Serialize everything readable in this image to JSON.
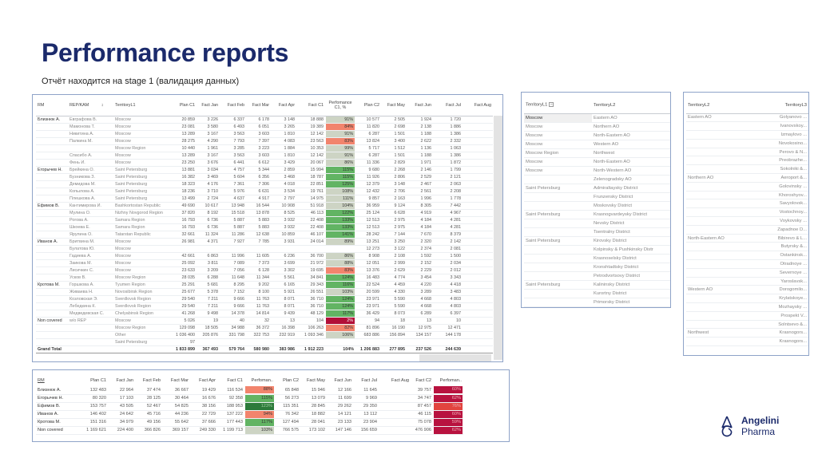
{
  "title": "Performance reports",
  "subtitle": "Отчёт находится на stage 1  (валидация данных)",
  "perf_colors": {
    "neutral": "#cdd4c4",
    "low": "#f2846d",
    "high": "#62b463",
    "very_high": "#2c7a3a",
    "missing": "#b20f38",
    "c2": "#b8123f",
    "c2_light": "#e2443f"
  },
  "main_table": {
    "headers": [
      "RM",
      "REP/KAM",
      "TerritoryL1",
      "Plan C1",
      "Fact Jan",
      "Fact Feb",
      "Fact Mar",
      "Fact Apr",
      "Fact C1",
      "Perfomance C1, %",
      "Plan C2",
      "Fact May",
      "Fact Jun",
      "Fact Jul",
      "Fact Aug"
    ],
    "sort_icon": "sort-icon",
    "rows": [
      {
        "cells": [
          "Близнюк А.",
          "Евграфова В.",
          "Moscow",
          "20 859",
          "3 226",
          "6 337",
          "6 178",
          "3 148",
          "18 888",
          "91%",
          "10 577",
          "2 505",
          "1 924",
          "1 720",
          ""
        ],
        "perf": "neutral"
      },
      {
        "cells": [
          "",
          "Мамонова Т.",
          "Moscow",
          "23 081",
          "3 580",
          "6 493",
          "6 051",
          "3 265",
          "19 389",
          "84%",
          "11 820",
          "2 698",
          "2 138",
          "1 886",
          ""
        ],
        "perf": "low"
      },
      {
        "cells": [
          "",
          "Никитина А.",
          "Moscow",
          "13 289",
          "3 167",
          "3 563",
          "3 603",
          "1 810",
          "12 142",
          "91%",
          "6 287",
          "1 501",
          "1 188",
          "1 386",
          ""
        ],
        "perf": "neutral"
      },
      {
        "cells": [
          "",
          "Палкина М.",
          "Moscow",
          "28 275",
          "4 290",
          "7 793",
          "7 397",
          "4 083",
          "23 563",
          "83%",
          "13 824",
          "3 400",
          "2 622",
          "2 332",
          ""
        ],
        "perf": "low"
      },
      {
        "cells": [
          "",
          "",
          "Moscow Region",
          "10 440",
          "1 961",
          "3 285",
          "3 223",
          "1 884",
          "10 353",
          "99%",
          "5 717",
          "1 512",
          "1 136",
          "1 063",
          ""
        ],
        "perf": "neutral"
      },
      {
        "cells": [
          "",
          "Спасибо А.",
          "Moscow",
          "13 289",
          "3 167",
          "3 563",
          "3 603",
          "1 810",
          "12 142",
          "91%",
          "6 287",
          "1 501",
          "1 188",
          "1 386",
          ""
        ],
        "perf": "neutral"
      },
      {
        "cells": [
          "",
          "Фень И.",
          "Moscow",
          "23 250",
          "3 676",
          "6 441",
          "6 612",
          "3 429",
          "20 067",
          "86%",
          "11 336",
          "2 829",
          "1 971",
          "1 872",
          ""
        ],
        "perf": "neutral"
      },
      {
        "cells": [
          "Егорычев Н.",
          "Брейкина О.",
          "Saint Petersburg",
          "13 881",
          "3 034",
          "4 757",
          "5 344",
          "2 859",
          "15 994",
          "115%",
          "9 680",
          "2 268",
          "2 146",
          "1 799",
          ""
        ],
        "perf": "high"
      },
      {
        "cells": [
          "",
          "Бузникова З.",
          "Saint Petersburg",
          "16 382",
          "3 469",
          "5 604",
          "6 356",
          "3 468",
          "18 787",
          "115%",
          "11 926",
          "2 806",
          "2 529",
          "2 121",
          ""
        ],
        "perf": "high"
      },
      {
        "cells": [
          "",
          "Демидова М.",
          "Saint Petersburg",
          "18 323",
          "4 176",
          "7 361",
          "7 306",
          "4 018",
          "22 851",
          "125%",
          "12 379",
          "3 148",
          "2 467",
          "2 063",
          ""
        ],
        "perf": "high"
      },
      {
        "cells": [
          "",
          "Копылова А.",
          "Saint Petersburg",
          "18 236",
          "3 710",
          "5 976",
          "6 631",
          "3 534",
          "19 761",
          "108%",
          "12 432",
          "2 706",
          "2 561",
          "2 208",
          ""
        ],
        "perf": "neutral"
      },
      {
        "cells": [
          "",
          "Плешкова А.",
          "Saint Petersburg",
          "13 499",
          "2 724",
          "4 637",
          "4 917",
          "2 797",
          "14 975",
          "111%",
          "9 857",
          "2 163",
          "1 996",
          "1 778",
          ""
        ],
        "perf": "neutral"
      },
      {
        "cells": [
          "Ефимов В.",
          "Кантимирова И.",
          "Bashkortostan Republic",
          "49 690",
          "10 617",
          "13 948",
          "16 544",
          "10 908",
          "51 918",
          "104%",
          "36 959",
          "9 124",
          "8 305",
          "7 442",
          ""
        ],
        "perf": "neutral"
      },
      {
        "cells": [
          "",
          "Мулина О.",
          "Nizhny Novgorod Region",
          "37 820",
          "8 192",
          "15 518",
          "13 878",
          "8 525",
          "46 113",
          "122%",
          "25 124",
          "6 628",
          "4 919",
          "4 967",
          ""
        ],
        "perf": "high"
      },
      {
        "cells": [
          "",
          "Рогова А.",
          "Samara Region",
          "16 793",
          "6 736",
          "5 887",
          "5 883",
          "3 932",
          "22 408",
          "133%",
          "12 513",
          "2 975",
          "4 184",
          "4 281",
          ""
        ],
        "perf": "high"
      },
      {
        "cells": [
          "",
          "Шкоева Е.",
          "Samara Region",
          "16 793",
          "6 736",
          "5 887",
          "5 883",
          "3 932",
          "22 408",
          "133%",
          "12 513",
          "2 975",
          "4 184",
          "4 281",
          ""
        ],
        "perf": "high"
      },
      {
        "cells": [
          "",
          "Ярулина О.",
          "Tatarstan Republic",
          "32 661",
          "11 324",
          "11 286",
          "12 638",
          "10 859",
          "46 107",
          "141%",
          "28 242",
          "7 144",
          "7 670",
          "8 379",
          ""
        ],
        "perf": "high"
      },
      {
        "cells": [
          "Иванов А.",
          "Бритвина М.",
          "Moscow",
          "26 981",
          "4 371",
          "7 927",
          "7 785",
          "3 931",
          "24 014",
          "89%",
          "13 251",
          "3 250",
          "2 320",
          "2 142",
          ""
        ],
        "perf": "neutral"
      },
      {
        "cells": [
          "",
          "Булатова Ю.",
          "Moscow",
          "",
          "",
          "",
          "",
          "",
          "",
          "",
          "12 273",
          "3 122",
          "2 374",
          "2 081",
          ""
        ],
        "perf": "missing"
      },
      {
        "cells": [
          "",
          "Гадиева А.",
          "Moscow",
          "42 661",
          "6 863",
          "11 996",
          "11 605",
          "6 236",
          "36 700",
          "86%",
          "8 908",
          "2 108",
          "1 592",
          "1 500",
          ""
        ],
        "perf": "neutral"
      },
      {
        "cells": [
          "",
          "Заикова М.",
          "Moscow",
          "25 092",
          "3 811",
          "7 089",
          "7 373",
          "3 699",
          "21 972",
          "88%",
          "12 051",
          "2 999",
          "2 152",
          "2 034",
          ""
        ],
        "perf": "neutral"
      },
      {
        "cells": [
          "",
          "Лисичкин С.",
          "Moscow",
          "23 633",
          "3 209",
          "7 056",
          "6 128",
          "3 302",
          "19 695",
          "83%",
          "13 376",
          "2 629",
          "2 229",
          "2 012",
          ""
        ],
        "perf": "low"
      },
      {
        "cells": [
          "",
          "Усков В.",
          "Moscow Region",
          "28 035",
          "6 288",
          "11 648",
          "11 344",
          "5 561",
          "34 841",
          "124%",
          "16 483",
          "4 774",
          "3 454",
          "3 343",
          ""
        ],
        "perf": "high"
      },
      {
        "cells": [
          "Кротова М.",
          "Горшкова А.",
          "Tyumen Region",
          "25 291",
          "5 681",
          "8 295",
          "9 202",
          "6 165",
          "29 343",
          "116%",
          "22 524",
          "4 459",
          "4 220",
          "4 418",
          ""
        ],
        "perf": "high"
      },
      {
        "cells": [
          "",
          "Живаева Н.",
          "Novosibirsk Region",
          "25 677",
          "5 378",
          "7 152",
          "8 100",
          "5 921",
          "26 551",
          "103%",
          "20 599",
          "4 330",
          "3 289",
          "3 483",
          ""
        ],
        "perf": "neutral"
      },
      {
        "cells": [
          "",
          "Козловская Э.",
          "Sverdlovsk Region",
          "29 540",
          "7 211",
          "9 666",
          "11 763",
          "8 071",
          "36 710",
          "124%",
          "23 971",
          "5 590",
          "4 668",
          "4 803",
          ""
        ],
        "perf": "high"
      },
      {
        "cells": [
          "",
          "Лебедкина К.",
          "Sverdlovsk Region",
          "29 540",
          "7 211",
          "9 666",
          "11 763",
          "8 071",
          "36 710",
          "124%",
          "23 971",
          "5 590",
          "4 668",
          "4 803",
          ""
        ],
        "perf": "high"
      },
      {
        "cells": [
          "",
          "Медведевская С.",
          "Chelyabinsk Region",
          "41 268",
          "9 498",
          "14 378",
          "14 814",
          "9 439",
          "48 129",
          "117%",
          "36 429",
          "8 073",
          "6 289",
          "6 397",
          ""
        ],
        "perf": "high"
      },
      {
        "cells": [
          "Non covered",
          "w/o REP",
          "Moscow",
          "5 026",
          "19",
          "40",
          "32",
          "13",
          "104",
          "2%",
          "94",
          "18",
          "13",
          "10",
          ""
        ],
        "perf": "missing"
      },
      {
        "cells": [
          "",
          "",
          "Moscow Region",
          "129 098",
          "18 505",
          "34 988",
          "36 372",
          "16 398",
          "106 263",
          "82%",
          "81 896",
          "16 190",
          "12 975",
          "12 471",
          ""
        ],
        "perf": "low"
      },
      {
        "cells": [
          "",
          "",
          "Other",
          "1 036 400",
          "205 876",
          "331 798",
          "322 753",
          "232 919",
          "1 093 346",
          "106%",
          "683 886",
          "156 894",
          "134 157",
          "144 178",
          ""
        ],
        "perf": "neutral"
      },
      {
        "cells": [
          "",
          "",
          "Saint Petersburg",
          "97",
          "",
          "",
          "",
          "",
          "",
          "",
          "",
          "",
          "",
          "",
          ""
        ],
        "perf": "missing"
      }
    ],
    "total": [
      "Grand Total",
      "",
      "",
      "1 833 899",
      "367 493",
      "579 764",
      "580 980",
      "383 986",
      "1 912 223",
      "104%",
      "1 206 883",
      "277 895",
      "237 526",
      "244 639",
      ""
    ]
  },
  "summary_table": {
    "headers": [
      "RM",
      "Plan C1",
      "Fact Jan",
      "Fact Feb",
      "Fact Mar",
      "Fact Apr",
      "Fact C1",
      "Perfoman..",
      "Plan C2",
      "Fact May",
      "Fact Jun",
      "Fact Jul",
      "Fact Aug",
      "Fact C2",
      "Perfoman.."
    ],
    "rows": [
      {
        "cells": [
          "Близнюк А.",
          "132 483",
          "22 964",
          "37 474",
          "36 667",
          "19 429",
          "116 534",
          "88%",
          "65 848",
          "15 946",
          "12 166",
          "11 645",
          "",
          "39 757",
          "60%"
        ],
        "perf": "low",
        "perf2": "c2"
      },
      {
        "cells": [
          "Егорычев Н.",
          "80 320",
          "17 103",
          "28 125",
          "30 464",
          "16 676",
          "92 358",
          "115%",
          "56 273",
          "13 079",
          "11 699",
          "9 969",
          "",
          "34 747",
          "62%"
        ],
        "perf": "high",
        "perf2": "c2"
      },
      {
        "cells": [
          "Ефимов В.",
          "153 757",
          "43 505",
          "52 467",
          "54 825",
          "38 156",
          "188 953",
          "123%",
          "115 351",
          "28 845",
          "29 262",
          "29 350",
          "",
          "87 457",
          "76%"
        ],
        "perf": "very_high",
        "perf2": "c2_light"
      },
      {
        "cells": [
          "Иванов А.",
          "146 402",
          "24 642",
          "45 716",
          "44 236",
          "22 729",
          "137 222",
          "94%",
          "76 342",
          "18 882",
          "14 121",
          "13 112",
          "",
          "46 115",
          "60%"
        ],
        "perf": "low",
        "perf2": "c2"
      },
      {
        "cells": [
          "Кротова М.",
          "151 316",
          "34 979",
          "49 156",
          "55 642",
          "37 666",
          "177 443",
          "117%",
          "127 494",
          "28 041",
          "23 133",
          "23 904",
          "",
          "75 078",
          "59%"
        ],
        "perf": "high",
        "perf2": "c2"
      },
      {
        "cells": [
          "Non covered",
          "1 169 621",
          "224 400",
          "366 826",
          "369 157",
          "249 330",
          "1 199 713",
          "103%",
          "766 575",
          "173 102",
          "147 146",
          "156 659",
          "",
          "476 906",
          "62%"
        ],
        "perf": "neutral",
        "perf2": "c2"
      }
    ]
  },
  "territory_l1_table": {
    "headers": [
      "TerritoryL1",
      "TerritoryL2"
    ],
    "collapse_icon": "collapse-icon",
    "rows": [
      [
        "Moscow",
        "Eastern AO"
      ],
      [
        "Moscow",
        "Northern AO"
      ],
      [
        "Moscow",
        "North-Eastern AO"
      ],
      [
        "Moscow",
        "Western AO"
      ],
      [
        "Moscow Region",
        "Northwest"
      ],
      [
        "Moscow",
        "North-Eastern AO"
      ],
      [
        "Moscow",
        "North-Western AO"
      ],
      [
        "",
        "Zelenogradsky AO"
      ],
      [
        "Saint Petersburg",
        "Admiraltaysky District"
      ],
      [
        "",
        "Frunzensky District"
      ],
      [
        "",
        "Moskovsky District"
      ],
      [
        "Saint Petersburg",
        "Krasnogvardeysky District"
      ],
      [
        "",
        "Nevsky District"
      ],
      [
        "",
        "Tsentralny District"
      ],
      [
        "Saint Petersburg",
        "Kirovsky District"
      ],
      [
        "",
        "Kolpinsky & Pushkinsky Distr"
      ],
      [
        "",
        "Krasnoselsky District"
      ],
      [
        "",
        "Kronshtadtsky District"
      ],
      [
        "",
        "Petrodvortsovy District"
      ],
      [
        "Saint Petersburg",
        "Kalininsky District"
      ],
      [
        "",
        "Kurortny District"
      ],
      [
        "",
        "Primorsky District"
      ]
    ]
  },
  "territory_l2_table": {
    "headers": [
      "TerritoryL2",
      "TerritoryL3"
    ],
    "rows": [
      [
        "Eastern AO",
        "Golyanovo ..."
      ],
      [
        "",
        "Ivanovskoy..."
      ],
      [
        "",
        "Izmaylovo ..."
      ],
      [
        "",
        "Novokosino..."
      ],
      [
        "",
        "Perovo & N..."
      ],
      [
        "",
        "Preobrazhe..."
      ],
      [
        "",
        "Sokolniki &..."
      ],
      [
        "Northern AO",
        "Aeroport &..."
      ],
      [
        "",
        "Golovinsky ..."
      ],
      [
        "",
        "Khoroshyov..."
      ],
      [
        "",
        "Savyolovsk..."
      ],
      [
        "",
        "Vostochnoy..."
      ],
      [
        "",
        "Voykovsky ..."
      ],
      [
        "",
        "Zapadnoe D..."
      ],
      [
        "North-Eastern AO",
        "Bibirevo & L..."
      ],
      [
        "",
        "Butyrsky &..."
      ],
      [
        "",
        "Ostankinsk..."
      ],
      [
        "",
        "Otradnoye ..."
      ],
      [
        "",
        "Severnoye ..."
      ],
      [
        "",
        "Yaroslavsk..."
      ],
      [
        "Western AO",
        "Dorogomilo..."
      ],
      [
        "",
        "Krylatskoye..."
      ],
      [
        "",
        "Mozhaysky ..."
      ],
      [
        "",
        "Prospekt V..."
      ],
      [
        "",
        "Solntsevo &..."
      ],
      [
        "Northwest",
        "Krasnogors..."
      ],
      [
        "",
        "Krasnogors..."
      ]
    ]
  },
  "logo": {
    "line1": "Angelini",
    "line2": "Pharma",
    "brand_color": "#1b2a6b"
  }
}
